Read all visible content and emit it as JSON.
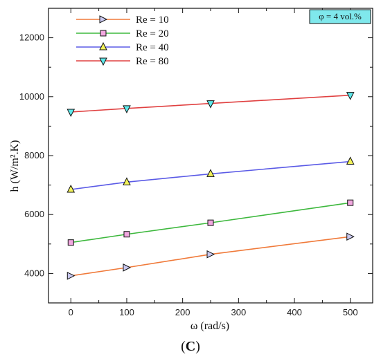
{
  "chart_data": {
    "type": "line",
    "title": "",
    "annotation": "φ = 4 vol.%",
    "annotation_color": "#7fe8ec",
    "xlabel": "ω (rad/s)",
    "ylabel": "h (W/m².K)",
    "xlim": [
      -40,
      540
    ],
    "ylim": [
      3000,
      13000
    ],
    "x_ticks": [
      0,
      100,
      200,
      300,
      400,
      500
    ],
    "y_ticks": [
      4000,
      6000,
      8000,
      10000,
      12000
    ],
    "grid": false,
    "legend_position": "top-left",
    "series": [
      {
        "name": "Re = 10",
        "color": "#f07a3a",
        "marker": "triangle-right",
        "marker_fill": "#c9c8f0",
        "x": [
          0,
          100,
          250,
          500
        ],
        "y": [
          3920,
          4200,
          4650,
          5250
        ]
      },
      {
        "name": "Re = 20",
        "color": "#3db83d",
        "marker": "square",
        "marker_fill": "#f2a8e0",
        "x": [
          0,
          100,
          250,
          500
        ],
        "y": [
          5050,
          5330,
          5720,
          6400
        ]
      },
      {
        "name": "Re = 40",
        "color": "#5a5ae6",
        "marker": "triangle-up",
        "marker_fill": "#f2f25a",
        "x": [
          0,
          100,
          250,
          500
        ],
        "y": [
          6850,
          7100,
          7380,
          7800
        ]
      },
      {
        "name": "Re = 80",
        "color": "#e04040",
        "marker": "triangle-down",
        "marker_fill": "#5ee8ea",
        "x": [
          0,
          100,
          250,
          500
        ],
        "y": [
          9480,
          9600,
          9770,
          10050
        ]
      }
    ]
  },
  "panel_label": "C"
}
